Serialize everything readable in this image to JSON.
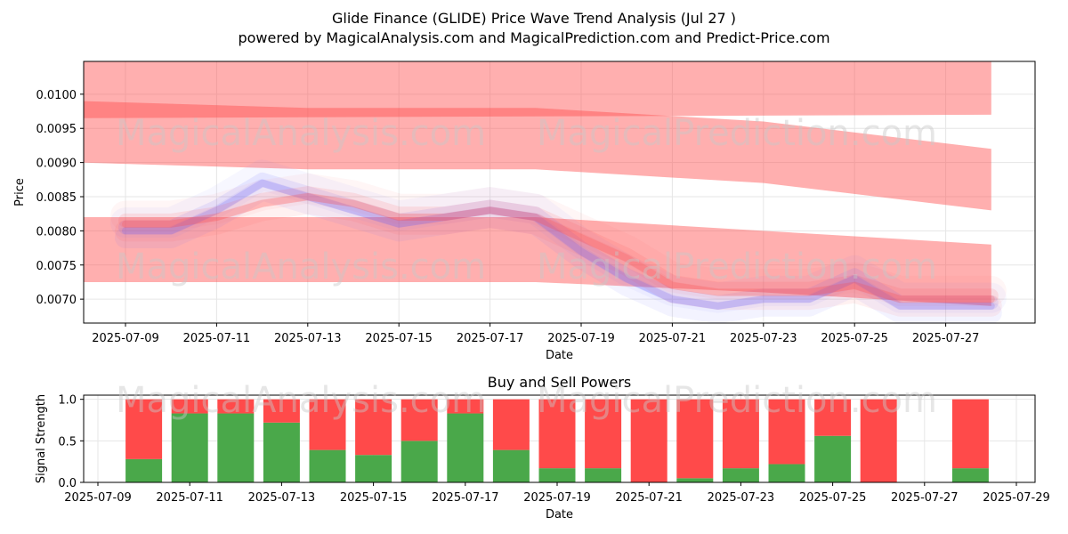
{
  "title": "Glide Finance (GLIDE) Price Wave Trend Analysis (Jul 27 )",
  "subtitle": "powered by MagicalAnalysis.com and MagicalPrediction.com and Predict-Price.com",
  "watermarks": [
    "MagicalAnalysis.com",
    "MagicalPrediction.com"
  ],
  "colors": {
    "red": "#ff4d4d",
    "blue": "#6666ff",
    "buy": "#4aa84a",
    "sell": "#ff4a4a",
    "grid": "#e6e6e6"
  },
  "chart_data": [
    {
      "type": "area",
      "xlabel": "Date",
      "ylabel": "Price",
      "x_ticks": [
        "2025-07-09",
        "2025-07-11",
        "2025-07-13",
        "2025-07-15",
        "2025-07-17",
        "2025-07-19",
        "2025-07-21",
        "2025-07-23",
        "2025-07-25",
        "2025-07-27"
      ],
      "y_ticks": [
        "0.0070",
        "0.0075",
        "0.0080",
        "0.0085",
        "0.0090",
        "0.0095",
        "0.0100"
      ],
      "ylim": [
        0.00665,
        0.01048
      ],
      "grid": true,
      "bands": [
        {
          "name": "upper",
          "x": [
            "2025-07-08",
            "2025-07-28"
          ],
          "upper": [
            0.01048,
            0.01048
          ],
          "lower": [
            0.00965,
            0.0097
          ]
        },
        {
          "name": "middle",
          "x": [
            "2025-07-08",
            "2025-07-13",
            "2025-07-18",
            "2025-07-23",
            "2025-07-28"
          ],
          "upper": [
            0.0099,
            0.0098,
            0.0098,
            0.0096,
            0.0092
          ],
          "lower": [
            0.009,
            0.0089,
            0.0089,
            0.0087,
            0.0083
          ]
        },
        {
          "name": "lower",
          "x": [
            "2025-07-08",
            "2025-07-13",
            "2025-07-18",
            "2025-07-23",
            "2025-07-28"
          ],
          "upper": [
            0.0082,
            0.0082,
            0.0082,
            0.008,
            0.0078
          ],
          "lower": [
            0.00725,
            0.00725,
            0.00725,
            0.0071,
            0.0069
          ]
        }
      ],
      "series": [
        {
          "color": "blue",
          "x": [
            "2025-07-09",
            "2025-07-10",
            "2025-07-11",
            "2025-07-12",
            "2025-07-13",
            "2025-07-14",
            "2025-07-15",
            "2025-07-16",
            "2025-07-17",
            "2025-07-18",
            "2025-07-19",
            "2025-07-20",
            "2025-07-21",
            "2025-07-22",
            "2025-07-23",
            "2025-07-24",
            "2025-07-25",
            "2025-07-26",
            "2025-07-27",
            "2025-07-28"
          ],
          "values": [
            0.008,
            0.008,
            0.0083,
            0.0087,
            0.0085,
            0.0083,
            0.0081,
            0.0082,
            0.0083,
            0.0082,
            0.0077,
            0.0073,
            0.007,
            0.0069,
            0.007,
            0.007,
            0.0073,
            0.0069,
            0.0069,
            0.0069
          ]
        },
        {
          "color": "red",
          "x": [
            "2025-07-09",
            "2025-07-10",
            "2025-07-11",
            "2025-07-12",
            "2025-07-13",
            "2025-07-14",
            "2025-07-15",
            "2025-07-16",
            "2025-07-17",
            "2025-07-18",
            "2025-07-19",
            "2025-07-20",
            "2025-07-21",
            "2025-07-22",
            "2025-07-23",
            "2025-07-24",
            "2025-07-25",
            "2025-07-26",
            "2025-07-27",
            "2025-07-28"
          ],
          "values": [
            0.0081,
            0.0081,
            0.0082,
            0.0084,
            0.0085,
            0.0084,
            0.0082,
            0.0082,
            0.0083,
            0.0082,
            0.0079,
            0.0076,
            0.0072,
            0.0071,
            0.0071,
            0.0071,
            0.0072,
            0.007,
            0.007,
            0.007
          ]
        }
      ]
    },
    {
      "type": "bar",
      "title": "Buy and Sell Powers",
      "xlabel": "Date",
      "ylabel": "Signal Strength",
      "x_ticks": [
        "2025-07-09",
        "2025-07-11",
        "2025-07-13",
        "2025-07-15",
        "2025-07-17",
        "2025-07-19",
        "2025-07-21",
        "2025-07-23",
        "2025-07-25",
        "2025-07-27",
        "2025-07-29"
      ],
      "y_ticks": [
        "0.0",
        "0.5",
        "1.0"
      ],
      "ylim": [
        0,
        1.05
      ],
      "grid": true,
      "categories": [
        "2025-07-10",
        "2025-07-11",
        "2025-07-12",
        "2025-07-13",
        "2025-07-14",
        "2025-07-15",
        "2025-07-16",
        "2025-07-17",
        "2025-07-18",
        "2025-07-19",
        "2025-07-20",
        "2025-07-21",
        "2025-07-22",
        "2025-07-23",
        "2025-07-24",
        "2025-07-25",
        "2025-07-26",
        "2025-07-27",
        "2025-07-28"
      ],
      "series": [
        {
          "name": "buy",
          "values": [
            0.28,
            0.83,
            0.83,
            0.72,
            0.39,
            0.33,
            0.5,
            0.83,
            0.39,
            0.17,
            0.17,
            0.0,
            0.05,
            0.17,
            0.22,
            0.56,
            0.0,
            0.0,
            0.17
          ]
        },
        {
          "name": "sell",
          "values": [
            0.72,
            0.17,
            0.17,
            0.28,
            0.61,
            0.67,
            0.5,
            0.17,
            0.61,
            0.83,
            0.83,
            1.0,
            0.95,
            0.83,
            0.78,
            0.44,
            1.0,
            0.0,
            0.83
          ]
        }
      ]
    }
  ]
}
